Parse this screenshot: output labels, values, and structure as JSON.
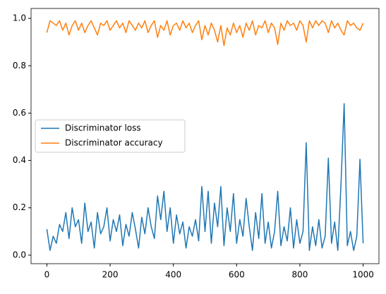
{
  "chart_data": {
    "type": "line",
    "x": [
      0,
      10,
      20,
      30,
      40,
      50,
      60,
      70,
      80,
      90,
      100,
      110,
      120,
      130,
      140,
      150,
      160,
      170,
      180,
      190,
      200,
      210,
      220,
      230,
      240,
      250,
      260,
      270,
      280,
      290,
      300,
      310,
      320,
      330,
      340,
      350,
      360,
      370,
      380,
      390,
      400,
      410,
      420,
      430,
      440,
      450,
      460,
      470,
      480,
      490,
      500,
      510,
      520,
      530,
      540,
      550,
      560,
      570,
      580,
      590,
      600,
      610,
      620,
      630,
      640,
      650,
      660,
      670,
      680,
      690,
      700,
      710,
      720,
      730,
      740,
      750,
      760,
      770,
      780,
      790,
      800,
      810,
      820,
      830,
      840,
      850,
      860,
      870,
      880,
      890,
      900,
      910,
      920,
      930,
      940,
      950,
      960,
      970,
      980,
      990,
      1000
    ],
    "series": [
      {
        "name": "Discriminator loss",
        "color": "#1f77b4",
        "values": [
          0.11,
          0.02,
          0.08,
          0.05,
          0.13,
          0.1,
          0.18,
          0.07,
          0.2,
          0.12,
          0.15,
          0.05,
          0.22,
          0.1,
          0.14,
          0.03,
          0.18,
          0.09,
          0.12,
          0.2,
          0.06,
          0.15,
          0.1,
          0.17,
          0.04,
          0.13,
          0.08,
          0.18,
          0.11,
          0.03,
          0.16,
          0.09,
          0.2,
          0.12,
          0.07,
          0.25,
          0.15,
          0.27,
          0.1,
          0.2,
          0.05,
          0.17,
          0.09,
          0.14,
          0.03,
          0.12,
          0.08,
          0.15,
          0.06,
          0.29,
          0.1,
          0.27,
          0.05,
          0.22,
          0.12,
          0.29,
          0.04,
          0.2,
          0.1,
          0.26,
          0.05,
          0.15,
          0.08,
          0.24,
          0.12,
          0.02,
          0.18,
          0.07,
          0.26,
          0.05,
          0.14,
          0.03,
          0.1,
          0.27,
          0.04,
          0.12,
          0.06,
          0.2,
          0.03,
          0.15,
          0.05,
          0.1,
          0.475,
          0.02,
          0.12,
          0.04,
          0.15,
          0.03,
          0.08,
          0.41,
          0.05,
          0.14,
          0.02,
          0.3,
          0.64,
          0.04,
          0.1,
          0.02,
          0.08,
          0.405,
          0.05
        ]
      },
      {
        "name": "Discriminator accuracy",
        "color": "#ff7f0e",
        "values": [
          0.94,
          0.99,
          0.98,
          0.97,
          0.99,
          0.95,
          0.98,
          0.93,
          0.97,
          0.99,
          0.95,
          0.98,
          0.94,
          0.97,
          0.99,
          0.96,
          0.93,
          0.98,
          0.97,
          0.99,
          0.95,
          0.97,
          0.99,
          0.96,
          0.98,
          0.94,
          0.99,
          0.97,
          0.95,
          0.98,
          0.96,
          0.99,
          0.94,
          0.97,
          0.99,
          0.92,
          0.97,
          0.95,
          0.99,
          0.93,
          0.97,
          0.98,
          0.95,
          0.99,
          0.96,
          0.98,
          0.94,
          0.97,
          0.99,
          0.91,
          0.97,
          0.93,
          0.98,
          0.95,
          0.9,
          0.97,
          0.885,
          0.96,
          0.93,
          0.98,
          0.94,
          0.97,
          0.92,
          0.98,
          0.95,
          0.99,
          0.93,
          0.97,
          0.96,
          0.99,
          0.94,
          0.98,
          0.96,
          0.89,
          0.98,
          0.95,
          0.99,
          0.97,
          0.98,
          0.95,
          0.99,
          0.97,
          0.9,
          0.99,
          0.96,
          0.99,
          0.97,
          0.99,
          0.98,
          0.94,
          0.99,
          0.96,
          0.98,
          0.95,
          0.93,
          0.99,
          0.97,
          0.98,
          0.96,
          0.95,
          0.98
        ]
      }
    ],
    "xlim": [
      -50,
      1050
    ],
    "ylim": [
      -0.036,
      1.042
    ],
    "xticks": [
      0,
      200,
      400,
      600,
      800,
      1000
    ],
    "yticks": [
      {
        "value": 0,
        "label": "0.0"
      },
      0.2,
      0.4,
      0.6,
      0.8,
      {
        "value": 1,
        "label": "1.0"
      }
    ],
    "grid": false,
    "legend": "center left"
  }
}
